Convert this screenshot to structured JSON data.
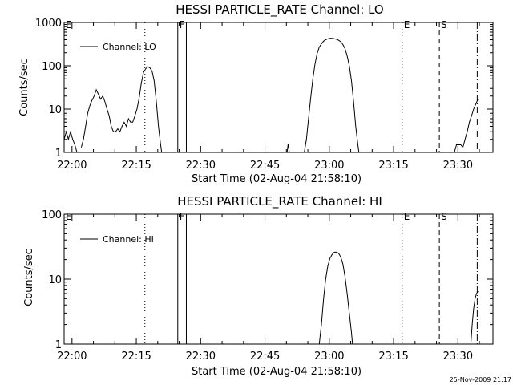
{
  "chart_data": [
    {
      "type": "line",
      "title": "HESSI PARTICLE_RATE Channel: LO",
      "xlabel": "Start Time (02-Aug-04 21:58:10)",
      "ylabel": "Counts/sec",
      "x_ticks": [
        "22:00",
        "22:15",
        "22:30",
        "22:45",
        "23:00",
        "23:15",
        "23:30"
      ],
      "y_ticks": [
        "1",
        "10",
        "100",
        "1000"
      ],
      "y_scale": "log",
      "ylim": [
        1,
        1000
      ],
      "xlim": [
        "21:58:10",
        "23:38:10"
      ],
      "legend": "Channel: LO",
      "legend_position": "top-left",
      "series": [
        {
          "name": "Channel: LO",
          "segments": [
            [
              [
                "21:58:10",
                2
              ],
              [
                "21:58:40",
                3
              ],
              [
                "21:59:10",
                2
              ],
              [
                "21:59:40",
                3
              ],
              [
                "22:00:10",
                2
              ],
              [
                "22:00:40",
                1.5
              ],
              [
                "22:01:10",
                1
              ]
            ],
            [
              [
                "22:02:10",
                1.3
              ],
              [
                "22:02:40",
                2
              ],
              [
                "22:03:10",
                4
              ],
              [
                "22:03:40",
                8
              ],
              [
                "22:04:10",
                12
              ],
              [
                "22:04:40",
                16
              ],
              [
                "22:05:10",
                20
              ],
              [
                "22:05:40",
                28
              ],
              [
                "22:06:10",
                22
              ],
              [
                "22:06:40",
                17
              ],
              [
                "22:07:10",
                20
              ],
              [
                "22:07:40",
                15
              ],
              [
                "22:08:10",
                10
              ],
              [
                "22:08:40",
                7
              ],
              [
                "22:09:10",
                4
              ],
              [
                "22:09:40",
                3
              ],
              [
                "22:10:10",
                3
              ],
              [
                "22:10:40",
                3.5
              ],
              [
                "22:11:10",
                3
              ],
              [
                "22:11:40",
                4
              ],
              [
                "22:12:10",
                5
              ],
              [
                "22:12:40",
                4
              ],
              [
                "22:13:10",
                6
              ],
              [
                "22:13:40",
                5
              ],
              [
                "22:14:10",
                5
              ],
              [
                "22:14:40",
                7
              ],
              [
                "22:15:10",
                10
              ],
              [
                "22:15:40",
                18
              ],
              [
                "22:16:10",
                40
              ],
              [
                "22:16:40",
                70
              ],
              [
                "22:17:10",
                85
              ],
              [
                "22:17:40",
                95
              ],
              [
                "22:18:10",
                90
              ],
              [
                "22:18:40",
                75
              ],
              [
                "22:19:10",
                45
              ],
              [
                "22:19:40",
                15
              ],
              [
                "22:20:10",
                4
              ],
              [
                "22:20:40",
                1.5
              ],
              [
                "22:20:55",
                1
              ]
            ],
            [
              [
                "22:50:10",
                1
              ],
              [
                "22:50:25",
                1.6
              ],
              [
                "22:50:40",
                1
              ]
            ],
            [
              [
                "22:54:10",
                1
              ],
              [
                "22:54:40",
                2
              ],
              [
                "22:55:10",
                6
              ],
              [
                "22:55:40",
                18
              ],
              [
                "22:56:10",
                50
              ],
              [
                "22:56:40",
                110
              ],
              [
                "22:57:10",
                190
              ],
              [
                "22:57:40",
                270
              ],
              [
                "22:58:10",
                320
              ],
              [
                "22:58:40",
                370
              ],
              [
                "22:59:10",
                400
              ],
              [
                "22:59:40",
                420
              ],
              [
                "23:00:10",
                430
              ],
              [
                "23:00:40",
                430
              ],
              [
                "23:01:10",
                420
              ],
              [
                "23:01:40",
                410
              ],
              [
                "23:02:10",
                390
              ],
              [
                "23:02:40",
                360
              ],
              [
                "23:03:10",
                310
              ],
              [
                "23:03:40",
                250
              ],
              [
                "23:04:10",
                170
              ],
              [
                "23:04:40",
                100
              ],
              [
                "23:05:10",
                45
              ],
              [
                "23:05:40",
                15
              ],
              [
                "23:06:10",
                4
              ],
              [
                "23:06:40",
                1.5
              ],
              [
                "23:06:55",
                1
              ]
            ],
            [
              [
                "23:29:10",
                1
              ],
              [
                "23:29:40",
                1.5
              ],
              [
                "23:30:10",
                1.5
              ],
              [
                "23:30:40",
                1.5
              ],
              [
                "23:31:10",
                1.3
              ],
              [
                "23:31:40",
                2
              ],
              [
                "23:32:10",
                3
              ],
              [
                "23:32:40",
                5
              ],
              [
                "23:33:10",
                7
              ],
              [
                "23:33:40",
                10
              ],
              [
                "23:34:10",
                13
              ],
              [
                "23:34:40",
                17
              ]
            ]
          ]
        }
      ]
    },
    {
      "type": "line",
      "title": "HESSI PARTICLE_RATE Channel: HI",
      "xlabel": "Start Time (02-Aug-04 21:58:10)",
      "ylabel": "Counts/sec",
      "x_ticks": [
        "22:00",
        "22:15",
        "22:30",
        "22:45",
        "23:00",
        "23:15",
        "23:30"
      ],
      "y_ticks": [
        "1",
        "10",
        "100"
      ],
      "y_scale": "log",
      "ylim": [
        1,
        100
      ],
      "xlim": [
        "21:58:10",
        "23:38:10"
      ],
      "legend": "Channel: HI",
      "legend_position": "top-left",
      "series": [
        {
          "name": "Channel: HI",
          "segments": [
            [
              [
                "22:57:40",
                1
              ],
              [
                "22:58:10",
                2
              ],
              [
                "22:58:40",
                5
              ],
              [
                "22:59:10",
                10
              ],
              [
                "22:59:40",
                16
              ],
              [
                "23:00:10",
                21
              ],
              [
                "23:00:40",
                24
              ],
              [
                "23:01:10",
                26
              ],
              [
                "23:01:40",
                26
              ],
              [
                "23:02:10",
                25
              ],
              [
                "23:02:40",
                22
              ],
              [
                "23:03:10",
                17
              ],
              [
                "23:03:40",
                11
              ],
              [
                "23:04:10",
                6
              ],
              [
                "23:04:40",
                3
              ],
              [
                "23:05:10",
                1.5
              ],
              [
                "23:05:25",
                1
              ]
            ],
            [
              [
                "23:33:00",
                1
              ],
              [
                "23:33:20",
                2
              ],
              [
                "23:33:40",
                3.5
              ],
              [
                "23:34:00",
                5
              ],
              [
                "23:34:20",
                6
              ],
              [
                "23:34:40",
                6.5
              ]
            ]
          ]
        }
      ]
    }
  ],
  "markers": [
    {
      "label": "E",
      "time": "21:58:10",
      "style": "none"
    },
    {
      "label": "",
      "time": "22:17:00",
      "style": "dotted"
    },
    {
      "label": "F",
      "time": "22:24:40",
      "style": "solid"
    },
    {
      "label": "",
      "time": "22:26:40",
      "style": "solid"
    },
    {
      "label": "E",
      "time": "23:17:00",
      "style": "dotted"
    },
    {
      "label": "S",
      "time": "23:25:40",
      "style": "dashed"
    },
    {
      "label": "",
      "time": "23:34:30",
      "style": "dashdot"
    }
  ],
  "footer": {
    "timestamp": "25-Nov-2009 21:17"
  }
}
